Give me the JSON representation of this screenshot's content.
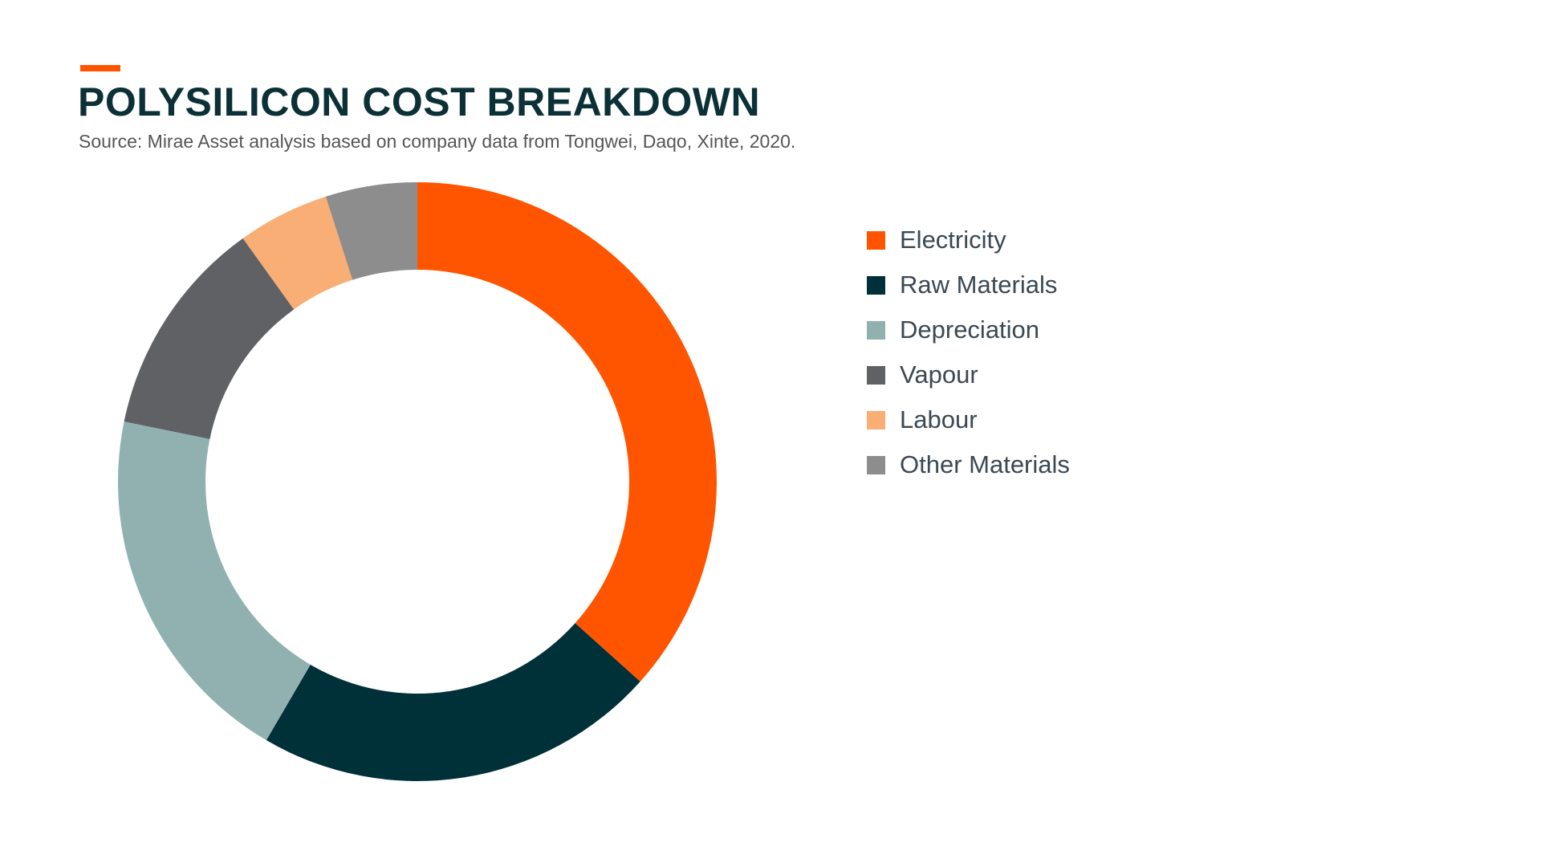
{
  "title": "POLYSILICON COST BREAKDOWN",
  "subtitle": "Source: Mirae Asset analysis based on company data from Tongwei, Daqo, Xinte, 2020.",
  "accent_color": "#ff5500",
  "chart_data": {
    "type": "pie",
    "donut": true,
    "legend_position": "right",
    "categories": [
      "Electricity",
      "Raw Materials",
      "Depreciation",
      "Vapour",
      "Labour",
      "Other Materials"
    ],
    "values": [
      37,
      22,
      20,
      12,
      5,
      5
    ],
    "colors": [
      "#ff5500",
      "#003038",
      "#91b1b1",
      "#5f6165",
      "#f8ae74",
      "#8d8d8d"
    ]
  }
}
